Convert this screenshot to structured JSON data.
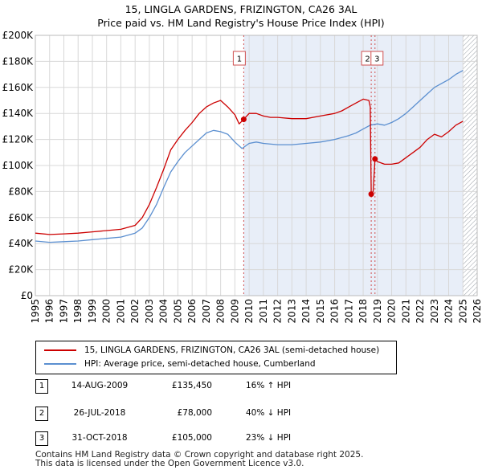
{
  "chart_data": {
    "type": "line",
    "title": "15, LINGLA GARDENS, FRIZINGTON, CA26 3AL",
    "subtitle": "Price paid vs. HM Land Registry's House Price Index (HPI)",
    "xlabel": "",
    "ylabel": "",
    "xlim": [
      1995,
      2026
    ],
    "ylim": [
      0,
      200000
    ],
    "y_ticks": [
      0,
      20000,
      40000,
      60000,
      80000,
      100000,
      120000,
      140000,
      160000,
      180000,
      200000
    ],
    "y_tick_labels": [
      "£0",
      "£20K",
      "£40K",
      "£60K",
      "£80K",
      "£100K",
      "£120K",
      "£140K",
      "£160K",
      "£180K",
      "£200K"
    ],
    "x_ticks": [
      1995,
      1996,
      1997,
      1998,
      1999,
      2000,
      2001,
      2002,
      2003,
      2004,
      2005,
      2006,
      2007,
      2008,
      2009,
      2010,
      2011,
      2012,
      2013,
      2014,
      2015,
      2016,
      2017,
      2018,
      2019,
      2020,
      2021,
      2022,
      2023,
      2024,
      2025,
      2026
    ],
    "x_tick_labels": [
      "1995",
      "1996",
      "1997",
      "1998",
      "1999",
      "2000",
      "2001",
      "2002",
      "2003",
      "2004",
      "2005",
      "2006",
      "2007",
      "2008",
      "2009",
      "2010",
      "2011",
      "2012",
      "2013",
      "2014",
      "2015",
      "2016",
      "2017",
      "2018",
      "2019",
      "2020",
      "2021",
      "2022",
      "2023",
      "2024",
      "2025",
      "2026"
    ],
    "grid": true,
    "shaded_from": 2009.62,
    "hatched_from": 2025.0,
    "series": [
      {
        "name": "15, LINGLA GARDENS, FRIZINGTON, CA26 3AL (semi-detached house)",
        "color": "#cc0000",
        "x": [
          1995.0,
          1996.0,
          1997.0,
          1998.0,
          1999.0,
          2000.0,
          2001.0,
          2002.0,
          2002.5,
          2003.0,
          2003.5,
          2004.0,
          2004.5,
          2005.0,
          2005.5,
          2006.0,
          2006.5,
          2007.0,
          2007.5,
          2008.0,
          2008.5,
          2009.0,
          2009.3,
          2009.62,
          2010.0,
          2010.5,
          2011.0,
          2011.5,
          2012.0,
          2013.0,
          2014.0,
          2015.0,
          2016.0,
          2016.5,
          2017.0,
          2017.5,
          2018.0,
          2018.4,
          2018.5,
          2018.566,
          2018.7,
          2018.83,
          2019.0,
          2019.5,
          2020.0,
          2020.5,
          2021.0,
          2021.5,
          2022.0,
          2022.5,
          2023.0,
          2023.5,
          2024.0,
          2024.5,
          2025.0
        ],
        "y": [
          48000,
          47000,
          47500,
          48000,
          49000,
          50000,
          51000,
          54000,
          60000,
          70000,
          83000,
          97000,
          112000,
          120000,
          127000,
          133000,
          140000,
          145000,
          148000,
          150000,
          145000,
          139000,
          132000,
          135450,
          140000,
          140000,
          138000,
          137000,
          137000,
          136000,
          136000,
          138000,
          140000,
          142000,
          145000,
          148000,
          151000,
          150000,
          145000,
          78000,
          80000,
          105000,
          103000,
          101000,
          101000,
          102000,
          106000,
          110000,
          114000,
          120000,
          124000,
          122000,
          126000,
          131000,
          134000
        ]
      },
      {
        "name": "HPI: Average price, semi-detached house, Cumberland",
        "color": "#5b8fd0",
        "x": [
          1995.0,
          1996.0,
          1997.0,
          1998.0,
          1999.0,
          2000.0,
          2001.0,
          2002.0,
          2002.5,
          2003.0,
          2003.5,
          2004.0,
          2004.5,
          2005.0,
          2005.5,
          2006.0,
          2006.5,
          2007.0,
          2007.5,
          2008.0,
          2008.5,
          2009.0,
          2009.5,
          2010.0,
          2010.5,
          2011.0,
          2012.0,
          2013.0,
          2014.0,
          2015.0,
          2016.0,
          2017.0,
          2017.5,
          2018.0,
          2018.5,
          2019.0,
          2019.5,
          2020.0,
          2020.5,
          2021.0,
          2021.5,
          2022.0,
          2022.5,
          2023.0,
          2023.5,
          2024.0,
          2024.5,
          2025.0
        ],
        "y": [
          42000,
          41000,
          41500,
          42000,
          43000,
          44000,
          45000,
          48000,
          52000,
          60000,
          70000,
          83000,
          95000,
          103000,
          110000,
          115000,
          120000,
          125000,
          127000,
          126000,
          124000,
          118000,
          113000,
          117000,
          118000,
          117000,
          116000,
          116000,
          117000,
          118000,
          120000,
          123000,
          125000,
          128000,
          131000,
          132000,
          131000,
          133000,
          136000,
          140000,
          145000,
          150000,
          155000,
          160000,
          163000,
          166000,
          170000,
          173000
        ]
      }
    ],
    "sale_markers": [
      {
        "label": "1",
        "x": 2009.62,
        "y": 135450
      },
      {
        "label": "2",
        "x": 2018.566,
        "y": 78000
      },
      {
        "label": "3",
        "x": 2018.83,
        "y": 105000
      }
    ]
  },
  "legend": {
    "property_label": "15, LINGLA GARDENS, FRIZINGTON, CA26 3AL (semi-detached house)",
    "hpi_label": "HPI: Average price, semi-detached house, Cumberland",
    "property_color": "#cc0000",
    "hpi_color": "#5b8fd0"
  },
  "sales": [
    {
      "num": "1",
      "date": "14-AUG-2009",
      "price": "£135,450",
      "hpi": "16% ↑ HPI"
    },
    {
      "num": "2",
      "date": "26-JUL-2018",
      "price": "£78,000",
      "hpi": "40% ↓ HPI"
    },
    {
      "num": "3",
      "date": "31-OCT-2018",
      "price": "£105,000",
      "hpi": "23% ↓ HPI"
    }
  ],
  "footer": {
    "line1": "Contains HM Land Registry data © Crown copyright and database right 2025.",
    "line2": "This data is licensed under the Open Government Licence v3.0."
  }
}
